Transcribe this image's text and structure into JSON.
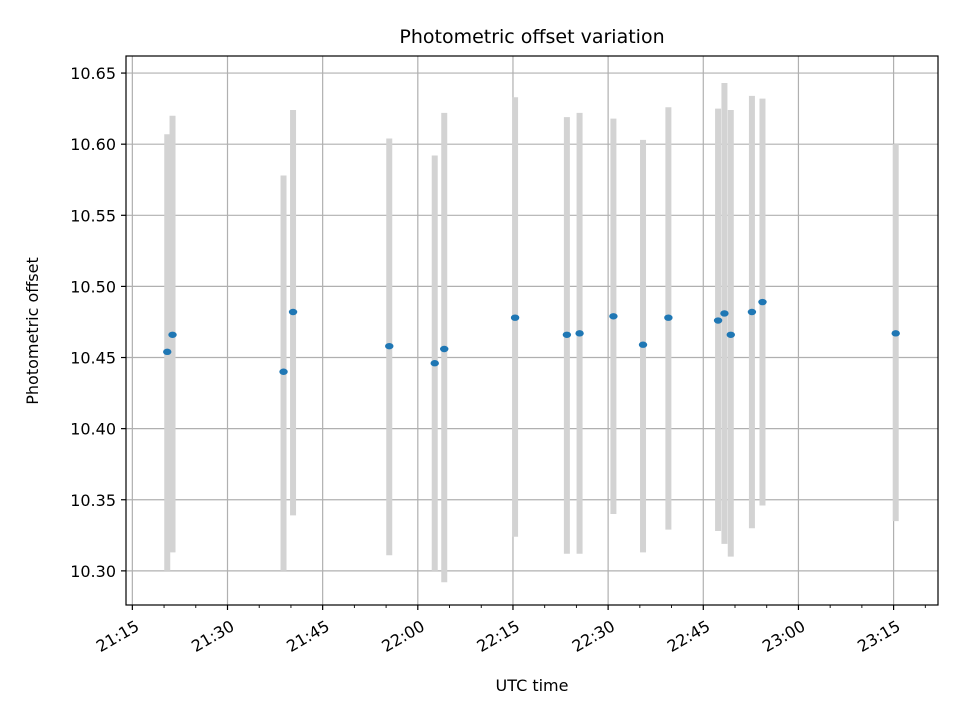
{
  "chart_data": {
    "type": "scatter",
    "title": "Photometric offset variation",
    "xlabel": "UTC time",
    "ylabel": "Photometric offset",
    "xlim": [
      "21:14",
      "23:22"
    ],
    "ylim": [
      10.276,
      10.662
    ],
    "x_ticks": [
      "21:15",
      "21:30",
      "21:45",
      "22:00",
      "22:15",
      "22:30",
      "22:45",
      "23:00",
      "23:15"
    ],
    "y_ticks": [
      10.3,
      10.35,
      10.4,
      10.45,
      10.5,
      10.55,
      10.6,
      10.65
    ],
    "grid": true,
    "marker_color": "#1f77b4",
    "errorbar_color": "#d3d3d3",
    "points": [
      {
        "time": "21:20:30",
        "y": 10.454,
        "low": 10.3,
        "high": 10.607
      },
      {
        "time": "21:21:20",
        "y": 10.466,
        "low": 10.313,
        "high": 10.62
      },
      {
        "time": "21:38:50",
        "y": 10.44,
        "low": 10.3,
        "high": 10.578
      },
      {
        "time": "21:40:20",
        "y": 10.482,
        "low": 10.339,
        "high": 10.624
      },
      {
        "time": "21:55:30",
        "y": 10.458,
        "low": 10.311,
        "high": 10.604
      },
      {
        "time": "22:02:40",
        "y": 10.446,
        "low": 10.3,
        "high": 10.592
      },
      {
        "time": "22:04:10",
        "y": 10.456,
        "low": 10.292,
        "high": 10.622
      },
      {
        "time": "22:15:20",
        "y": 10.478,
        "low": 10.324,
        "high": 10.633
      },
      {
        "time": "22:23:30",
        "y": 10.466,
        "low": 10.312,
        "high": 10.619
      },
      {
        "time": "22:25:30",
        "y": 10.467,
        "low": 10.312,
        "high": 10.622
      },
      {
        "time": "22:30:50",
        "y": 10.479,
        "low": 10.34,
        "high": 10.618
      },
      {
        "time": "22:35:30",
        "y": 10.459,
        "low": 10.313,
        "high": 10.603
      },
      {
        "time": "22:39:30",
        "y": 10.478,
        "low": 10.329,
        "high": 10.626
      },
      {
        "time": "22:47:20",
        "y": 10.476,
        "low": 10.328,
        "high": 10.625
      },
      {
        "time": "22:48:20",
        "y": 10.481,
        "low": 10.319,
        "high": 10.643
      },
      {
        "time": "22:49:20",
        "y": 10.466,
        "low": 10.31,
        "high": 10.624
      },
      {
        "time": "22:52:40",
        "y": 10.482,
        "low": 10.33,
        "high": 10.634
      },
      {
        "time": "22:54:20",
        "y": 10.489,
        "low": 10.346,
        "high": 10.632
      },
      {
        "time": "23:15:20",
        "y": 10.467,
        "low": 10.335,
        "high": 10.6
      }
    ]
  }
}
